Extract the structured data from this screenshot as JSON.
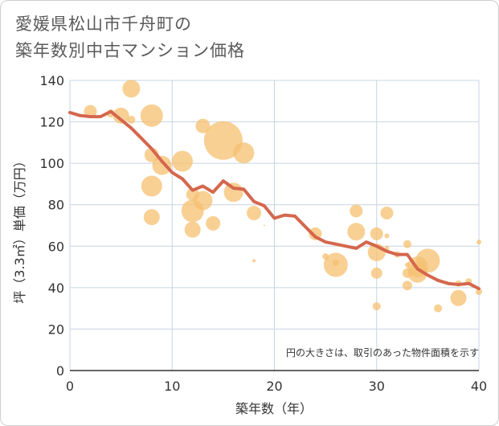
{
  "chart_data": {
    "type": "scatter",
    "title_lines": [
      "愛媛県松山市千舟町の",
      "築年数別中古マンション価格"
    ],
    "xlabel": "築年数（年）",
    "ylabel": "坪（3.3㎡）単価（万円）",
    "note": "円の大きさは、取引のあった物件面積を示す",
    "xlim": [
      0,
      40
    ],
    "ylim": [
      0,
      140
    ],
    "x_ticks": [
      "0",
      "10",
      "20",
      "30",
      "40"
    ],
    "y_ticks": [
      "0",
      "20",
      "40",
      "60",
      "80",
      "100",
      "120",
      "140"
    ],
    "grid": true,
    "colors": {
      "bubble": "#f5c070",
      "line": "#d4674d",
      "grid": "#c8d4e4",
      "axis": "#333333"
    },
    "bubbles": [
      {
        "x": 2,
        "y": 125,
        "size": 8
      },
      {
        "x": 4,
        "y": 124,
        "size": 5
      },
      {
        "x": 5,
        "y": 123,
        "size": 10
      },
      {
        "x": 6,
        "y": 121,
        "size": 5
      },
      {
        "x": 6,
        "y": 136,
        "size": 11
      },
      {
        "x": 8,
        "y": 123,
        "size": 14
      },
      {
        "x": 8,
        "y": 104,
        "size": 9
      },
      {
        "x": 9,
        "y": 99,
        "size": 12
      },
      {
        "x": 8,
        "y": 89,
        "size": 13
      },
      {
        "x": 8,
        "y": 74,
        "size": 10
      },
      {
        "x": 11,
        "y": 101,
        "size": 13
      },
      {
        "x": 12,
        "y": 85,
        "size": 8
      },
      {
        "x": 12,
        "y": 77,
        "size": 14
      },
      {
        "x": 12,
        "y": 68,
        "size": 10
      },
      {
        "x": 13,
        "y": 118,
        "size": 9
      },
      {
        "x": 13,
        "y": 82,
        "size": 12
      },
      {
        "x": 14,
        "y": 71,
        "size": 9
      },
      {
        "x": 15,
        "y": 111,
        "size": 24
      },
      {
        "x": 16,
        "y": 86,
        "size": 12
      },
      {
        "x": 17,
        "y": 105,
        "size": 13
      },
      {
        "x": 18,
        "y": 76,
        "size": 9
      },
      {
        "x": 18,
        "y": 53,
        "size": 2
      },
      {
        "x": 19,
        "y": 70,
        "size": 1
      },
      {
        "x": 24,
        "y": 66,
        "size": 8
      },
      {
        "x": 25,
        "y": 55,
        "size": 4
      },
      {
        "x": 26,
        "y": 51,
        "size": 15
      },
      {
        "x": 26,
        "y": 52,
        "size": 4
      },
      {
        "x": 28,
        "y": 77,
        "size": 8
      },
      {
        "x": 28,
        "y": 67,
        "size": 11
      },
      {
        "x": 30,
        "y": 66,
        "size": 8
      },
      {
        "x": 30,
        "y": 57,
        "size": 11
      },
      {
        "x": 30,
        "y": 47,
        "size": 7
      },
      {
        "x": 30,
        "y": 31,
        "size": 5
      },
      {
        "x": 31,
        "y": 76,
        "size": 8
      },
      {
        "x": 31,
        "y": 65,
        "size": 3
      },
      {
        "x": 31,
        "y": 59,
        "size": 3
      },
      {
        "x": 32,
        "y": 56,
        "size": 4
      },
      {
        "x": 33,
        "y": 61,
        "size": 5
      },
      {
        "x": 33,
        "y": 51,
        "size": 3
      },
      {
        "x": 33,
        "y": 47,
        "size": 6
      },
      {
        "x": 33,
        "y": 41,
        "size": 6
      },
      {
        "x": 34,
        "y": 50,
        "size": 13
      },
      {
        "x": 34,
        "y": 47,
        "size": 12
      },
      {
        "x": 35,
        "y": 53,
        "size": 15
      },
      {
        "x": 36,
        "y": 30,
        "size": 5
      },
      {
        "x": 38,
        "y": 42,
        "size": 4
      },
      {
        "x": 38,
        "y": 35,
        "size": 10
      },
      {
        "x": 39,
        "y": 43,
        "size": 4
      },
      {
        "x": 40,
        "y": 38,
        "size": 4
      },
      {
        "x": 40,
        "y": 62,
        "size": 3
      }
    ],
    "trend_line": {
      "x": [
        0,
        1,
        2,
        3,
        4,
        5,
        6,
        7,
        8,
        9,
        10,
        11,
        12,
        13,
        14,
        15,
        16,
        17,
        18,
        19,
        20,
        21,
        22,
        23,
        24,
        25,
        26,
        27,
        28,
        29,
        30,
        31,
        32,
        33,
        34,
        35,
        36,
        37,
        38,
        39,
        40
      ],
      "y": [
        124.5,
        123,
        122.5,
        122.5,
        125,
        121,
        117,
        112,
        107,
        101,
        95.5,
        92.5,
        87,
        89,
        86,
        91.5,
        88,
        87.5,
        81.5,
        79.5,
        73.5,
        75,
        74.5,
        69.5,
        64.5,
        62,
        61,
        60,
        59,
        62,
        60,
        57.5,
        56,
        56,
        49,
        46,
        43.5,
        42,
        41.5,
        42,
        39.5
      ]
    }
  }
}
